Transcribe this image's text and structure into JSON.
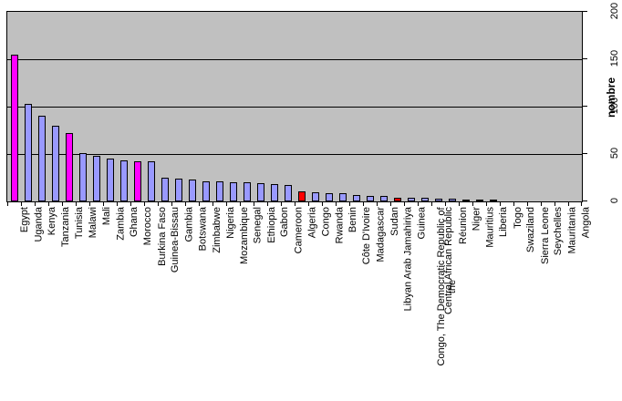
{
  "chart_data": {
    "type": "bar",
    "title": "",
    "xlabel": "",
    "ylabel": "nombre",
    "ylim": [
      0,
      200
    ],
    "yticks": [
      0,
      50,
      100,
      150,
      200
    ],
    "grid": "horizontal",
    "legend": "none",
    "axis_side": "right",
    "plot_bg": "#C0C0C0",
    "outer_bg": "#FFFFFF",
    "default_bar_color": "#9999FF",
    "highlight_magenta": "#FF00FF",
    "highlight_red": "#FF0000",
    "categories": [
      "Egypt",
      "Uganda",
      "Kenya",
      "Tanzania",
      "Tunisia",
      "Malawi",
      "Mali",
      "Zambia",
      "Ghana",
      "Morocco",
      "Burkina Faso",
      "Guinea-Bissau",
      "Gambia",
      "Botswana",
      "Zimbabwe",
      "Nigeria",
      "Mozambique",
      "Senegal",
      "Ethiopia",
      "Gabon",
      "Cameroon",
      "Algeria",
      "Congo",
      "Rwanda",
      "Benin",
      "Côte D'Ivoire",
      "Madagascar",
      "Sudan",
      "Libyan Arab Jamahiriya",
      "Guinea",
      "Congo, The Democratic Republic of the",
      "Central African Republic",
      "Réunion",
      "Niger",
      "Mauritius",
      "Liberia",
      "Togo",
      "Swaziland",
      "Sierra Leone",
      "Seychelles",
      "Mauritania",
      "Angola"
    ],
    "values": [
      155,
      103,
      90,
      80,
      72,
      51,
      48,
      45,
      43,
      42,
      42,
      25,
      24,
      23,
      21,
      21,
      20,
      20,
      19,
      18,
      17,
      11,
      10,
      9,
      9,
      7,
      6,
      6,
      4,
      4,
      4,
      3,
      3,
      2,
      2,
      2,
      0,
      0,
      0,
      0,
      0,
      0
    ],
    "bar_colors": [
      "#FF00FF",
      "#9999FF",
      "#9999FF",
      "#9999FF",
      "#FF00FF",
      "#9999FF",
      "#9999FF",
      "#9999FF",
      "#9999FF",
      "#FF00FF",
      "#9999FF",
      "#9999FF",
      "#9999FF",
      "#9999FF",
      "#9999FF",
      "#9999FF",
      "#9999FF",
      "#9999FF",
      "#9999FF",
      "#9999FF",
      "#9999FF",
      "#FF0000",
      "#9999FF",
      "#9999FF",
      "#9999FF",
      "#9999FF",
      "#9999FF",
      "#9999FF",
      "#FF0000",
      "#9999FF",
      "#9999FF",
      "#9999FF",
      "#9999FF",
      "#9999FF",
      "#9999FF",
      "#9999FF",
      "#9999FF",
      "#9999FF",
      "#9999FF",
      "#9999FF",
      "#9999FF",
      "#9999FF"
    ]
  }
}
